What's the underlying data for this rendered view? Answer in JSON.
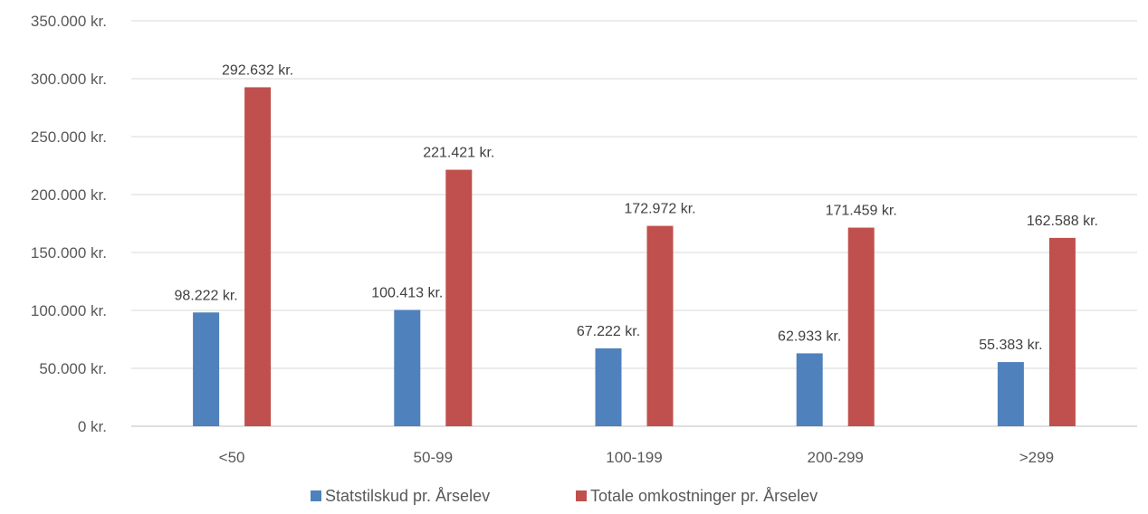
{
  "chart_data": {
    "type": "bar",
    "categories": [
      "<50",
      "50-99",
      "100-199",
      "200-299",
      ">299"
    ],
    "series": [
      {
        "name": "Statstilskud pr. Årselev",
        "values": [
          98222,
          100413,
          67222,
          62933,
          55383
        ],
        "labels": [
          "98.222 kr.",
          "100.413 kr.",
          "67.222 kr.",
          "62.933 kr.",
          "55.383 kr."
        ],
        "color": "#4f81bd"
      },
      {
        "name": "Totale omkostninger pr. Årselev",
        "values": [
          292632,
          221421,
          172972,
          171459,
          162588
        ],
        "labels": [
          "292.632 kr.",
          "221.421 kr.",
          "172.972 kr.",
          "171.459 kr.",
          "162.588 kr."
        ],
        "color": "#c0504d"
      }
    ],
    "ylim": [
      0,
      350000
    ],
    "yticks": [
      0,
      50000,
      100000,
      150000,
      200000,
      250000,
      300000,
      350000
    ],
    "ytick_labels": [
      "0 kr.",
      "50.000 kr.",
      "100.000 kr.",
      "150.000 kr.",
      "200.000 kr.",
      "250.000 kr.",
      "300.000 kr.",
      "350.000 kr."
    ],
    "grid": true,
    "gridline_color": "#d9d9d9",
    "legend_position": "bottom"
  }
}
